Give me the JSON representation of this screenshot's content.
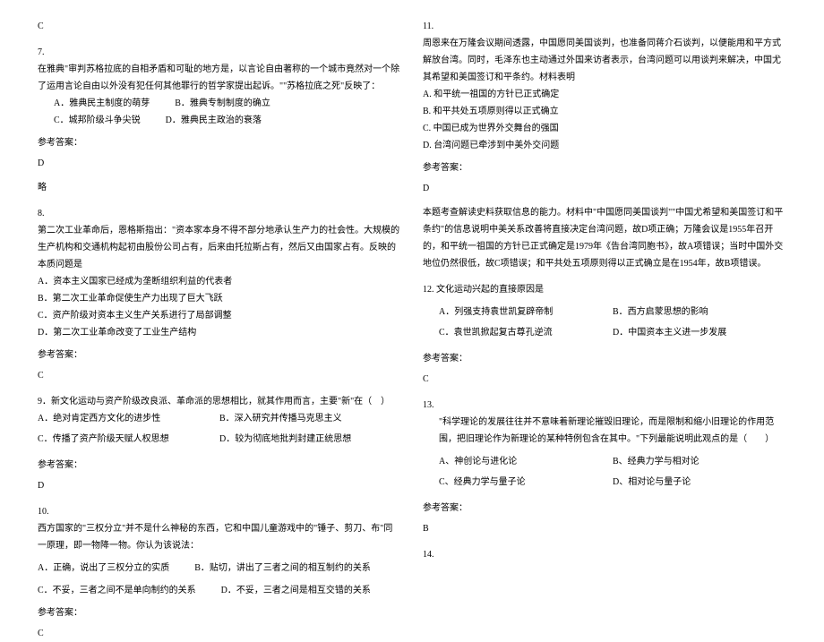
{
  "left": {
    "q6ans": "C",
    "q7": {
      "num": "7.",
      "stem": "在雅典\"审判苏格拉底的自相矛盾和可耻的地方是，以言论自由著称的一个城市竟然对一个除了运用言论自由以外没有犯任何其他罪行的哲学家提出起诉。\"\"苏格拉底之死\"反映了：",
      "A": "A．雅典民主制度的萌芽",
      "B": "B．雅典专制制度的确立",
      "C": "C．城邦阶级斗争尖锐",
      "D": "D．雅典民主政治的衰落",
      "ansLabel": "参考答案：",
      "ansVal": "D",
      "note": "略"
    },
    "q8": {
      "num": "8.",
      "stem": "第二次工业革命后，恩格斯指出：\"资本家本身不得不部分地承认生产力的社会性。大规模的生产机构和交通机构起初由股份公司占有，后来由托拉斯占有，然后又由国家占有。反映的本质问题是",
      "A": "A．资本主义国家已经成为垄断组织利益的代表者",
      "B": "B．第二次工业革命促使生产力出现了巨大飞跃",
      "C": "C．资产阶级对资本主义生产关系进行了局部调整",
      "D": "D．第二次工业革命改变了工业生产结构",
      "ansLabel": "参考答案：",
      "ansVal": "C"
    },
    "q9": {
      "num": "9．",
      "stem": "新文化运动与资产阶级改良派、革命派的思想相比，就其作用而言，主要\"新\"在（　）",
      "A": "A．绝对肯定西方文化的进步性",
      "B": "B．深入研究并传播马克思主义",
      "C": "C．传播了资产阶级天赋人权思想",
      "D": "D．较为彻底地批判封建正统思想",
      "ansLabel": "参考答案：",
      "ansVal": "D"
    },
    "q10": {
      "num": "10.",
      "stem": "西方国家的\"三权分立\"并不是什么神秘的东西，它和中国儿童游戏中的\"锤子、剪刀、布\"同一原理，即一物降一物。你认为该说法：",
      "A": "A．正确，说出了三权分立的实质",
      "B": "B．贴切，讲出了三者之间的相互制约的关系",
      "C": "C．不妥，三者之间不是单向制约的关系",
      "D": "D．不妥，三者之间是相互交错的关系",
      "ansLabel": "参考答案：",
      "ansVal": "C"
    }
  },
  "right": {
    "q11": {
      "num": "11.",
      "stem": "周恩来在万隆会议期间透露，中国愿同美国谈判，也准备同蒋介石谈判，以便能用和平方式解放台湾。同时，毛泽东也主动通过外国来访者表示，台湾问题可以用谈判来解决，中国尤其希望和美国签订和平条约。材料表明",
      "A": "A. 和平统一祖国的方针已正式确定",
      "B": "B. 和平共处五项原则得以正式确立",
      "C": "C. 中国已成为世界外交舞台的强国",
      "D": "D. 台湾问题已牵涉到中美外交问题",
      "ansLabel": "参考答案：",
      "ansVal": "D",
      "expl": "本题考查解读史料获取信息的能力。材料中\"中国愿同美国谈判\"\"中国尤希望和美国签订和平条约\"的信息说明中美关系改善将直接决定台湾问题，故D项正确；万隆会议是1955年召开的，和平统一祖国的方针已正式确定是1979年《告台湾同胞书》，故A项错误；当时中国外交地位仍然很低，故C项错误；和平共处五项原则得以正式确立是在1954年，故B项错误。"
    },
    "q12": {
      "num": "12. ",
      "stem": "文化运动兴起的直接原因是",
      "A": "A．列强支持袁世凯复辟帝制",
      "B": "B．西方启蒙思想的影响",
      "C": "C．袁世凯掀起复古尊孔逆流",
      "D": "D．中国资本主义进一步发展",
      "ansLabel": "参考答案：",
      "ansVal": "C"
    },
    "q13": {
      "num": "13.",
      "stem": "\"科学理论的发展往往并不意味着新理论摧毁旧理论，而是限制和缩小旧理论的作用范围，把旧理论作为新理论的某种特例包含在其中。\"下列最能说明此观点的是（　　）",
      "A": "A、神创论与进化论",
      "B": "B、经典力学与相对论",
      "C": "C、经典力学与量子论",
      "D": "D、相对论与量子论",
      "ansLabel": "参考答案：",
      "ansVal": "B"
    },
    "q14": {
      "num": "14."
    }
  }
}
